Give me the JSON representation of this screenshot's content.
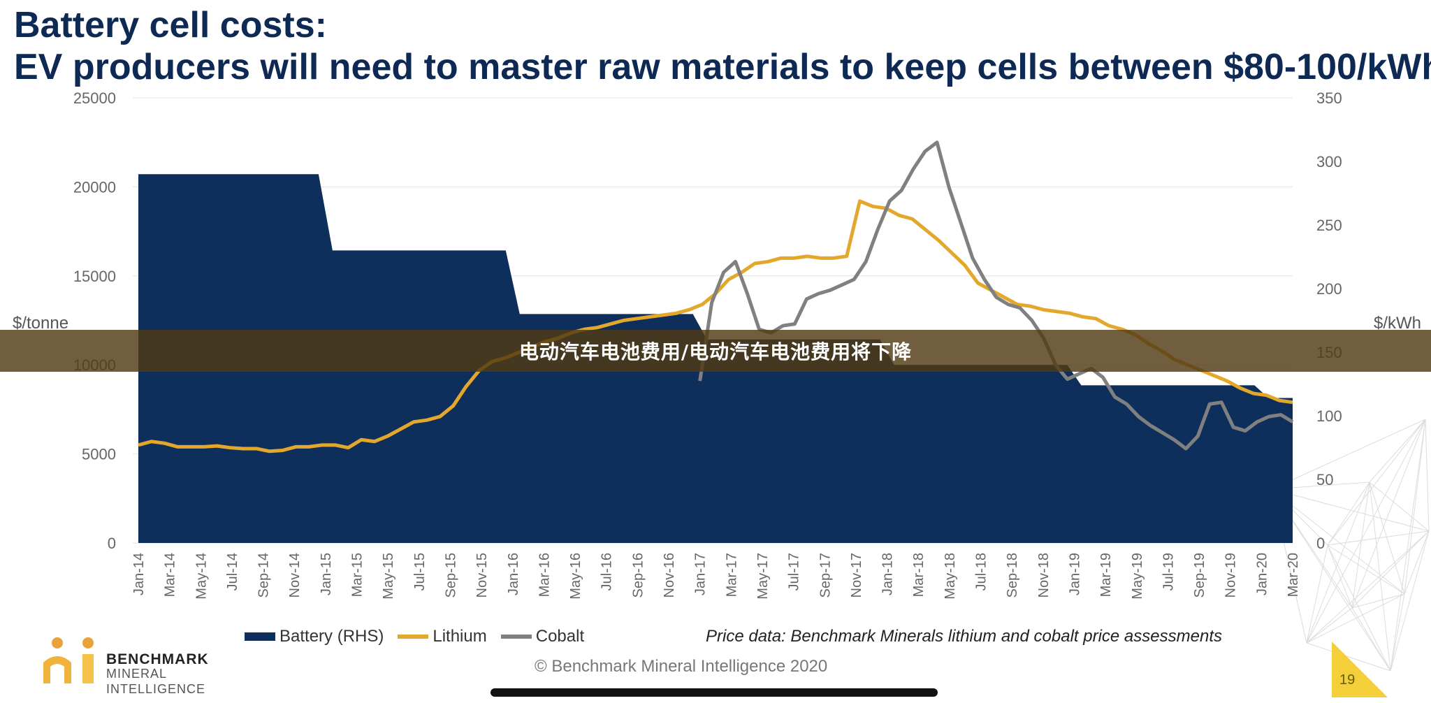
{
  "title_line1": "Battery cell costs:",
  "title_line2": "EV producers will need to master raw materials to keep cells between $80-100/kWh",
  "banner_text": "电动汽车电池费用/电动汽车电池费用将下降",
  "price_note": "Price data: Benchmark Minerals lithium and cobalt price assessments",
  "copyright": "© Benchmark Mineral Intelligence 2020",
  "logo": {
    "line1": "BENCHMARK",
    "line2": "MINERAL",
    "line3": "INTELLIGENCE"
  },
  "page_number": "19",
  "colors": {
    "battery": "#0e2f5c",
    "lithium": "#e3a82b",
    "cobalt": "#808080",
    "title": "#0e2a54"
  },
  "chart_data": {
    "type": "area",
    "ylabel_left": "$/tonne",
    "ylabel_right": "$/kWh",
    "ylim_left": [
      0,
      25000
    ],
    "ylim_right": [
      0,
      350
    ],
    "yticks_left": [
      "0",
      "5000",
      "10000",
      "15000",
      "20000",
      "25000"
    ],
    "yticks_right": [
      "0",
      "50",
      "100",
      "150",
      "200",
      "250",
      "300",
      "350"
    ],
    "x_tick_labels": [
      "Jan-14",
      "Mar-14",
      "May-14",
      "Jul-14",
      "Sep-14",
      "Nov-14",
      "Jan-15",
      "Mar-15",
      "May-15",
      "Jul-15",
      "Sep-15",
      "Nov-15",
      "Jan-16",
      "Mar-16",
      "May-16",
      "Jul-16",
      "Sep-16",
      "Nov-16",
      "Jan-17",
      "Mar-17",
      "May-17",
      "Jul-17",
      "Sep-17",
      "Nov-17",
      "Jan-18",
      "Mar-18",
      "May-18",
      "Jul-18",
      "Sep-18",
      "Nov-18",
      "Jan-19",
      "Mar-19",
      "May-19",
      "Jul-19",
      "Sep-19",
      "Nov-19",
      "Jan-20",
      "Mar-20"
    ],
    "grid": true,
    "legend_position": "bottom",
    "series": [
      {
        "name": "Battery (RHS)",
        "type": "area",
        "axis": "right",
        "steps": [
          {
            "from": "Jan-14",
            "to": "Dec-14",
            "value": 290
          },
          {
            "from": "Jan-15",
            "to": "Dec-15",
            "value": 230
          },
          {
            "from": "Jan-16",
            "to": "Dec-16",
            "value": 180
          },
          {
            "from": "Jan-17",
            "to": "Dec-17",
            "value": 160
          },
          {
            "from": "Jan-18",
            "to": "Dec-18",
            "value": 140
          },
          {
            "from": "Jan-19",
            "to": "Dec-19",
            "value": 124
          },
          {
            "from": "Jan-20",
            "to": "Mar-20",
            "value": 114
          }
        ]
      },
      {
        "name": "Lithium",
        "type": "line",
        "axis": "left",
        "values": [
          5500,
          5700,
          5600,
          5400,
          5400,
          5400,
          5450,
          5350,
          5300,
          5300,
          5150,
          5200,
          5400,
          5400,
          5500,
          5500,
          5350,
          5800,
          5700,
          6000,
          6400,
          6800,
          6900,
          7100,
          7700,
          8800,
          9700,
          10200,
          10400,
          10700,
          11000,
          11300,
          11500,
          11800,
          12000,
          12100,
          12300,
          12500,
          12600,
          12700,
          12800,
          12900,
          13100,
          13400,
          14000,
          14800,
          15200,
          15700,
          15800,
          16000,
          16000,
          16100,
          16000,
          16000,
          16100,
          19200,
          18900,
          18800,
          18400,
          18200,
          17600,
          17000,
          16300,
          15600,
          14600,
          14200,
          13800,
          13400,
          13300,
          13100,
          13000,
          12900,
          12700,
          12600,
          12200,
          12000,
          11700,
          11200,
          10800,
          10300,
          10000,
          9700,
          9400,
          9100,
          8700,
          8400,
          8300,
          8000,
          7900
        ]
      },
      {
        "name": "Cobalt",
        "type": "line",
        "axis": "left",
        "start": "Jan-17",
        "values": [
          9100,
          13500,
          15200,
          15800,
          14000,
          12000,
          11800,
          12200,
          12300,
          13700,
          14000,
          14200,
          14500,
          14800,
          15800,
          17600,
          19200,
          19800,
          21000,
          22000,
          22500,
          20000,
          18000,
          16000,
          14800,
          13800,
          13400,
          13200,
          12500,
          11500,
          10000,
          9200,
          9500,
          9800,
          9300,
          8200,
          7800,
          7100,
          6600,
          6200,
          5800,
          5300,
          6000,
          7800,
          7900,
          6500,
          6300,
          6800,
          7100,
          7200,
          6800
        ]
      }
    ]
  }
}
